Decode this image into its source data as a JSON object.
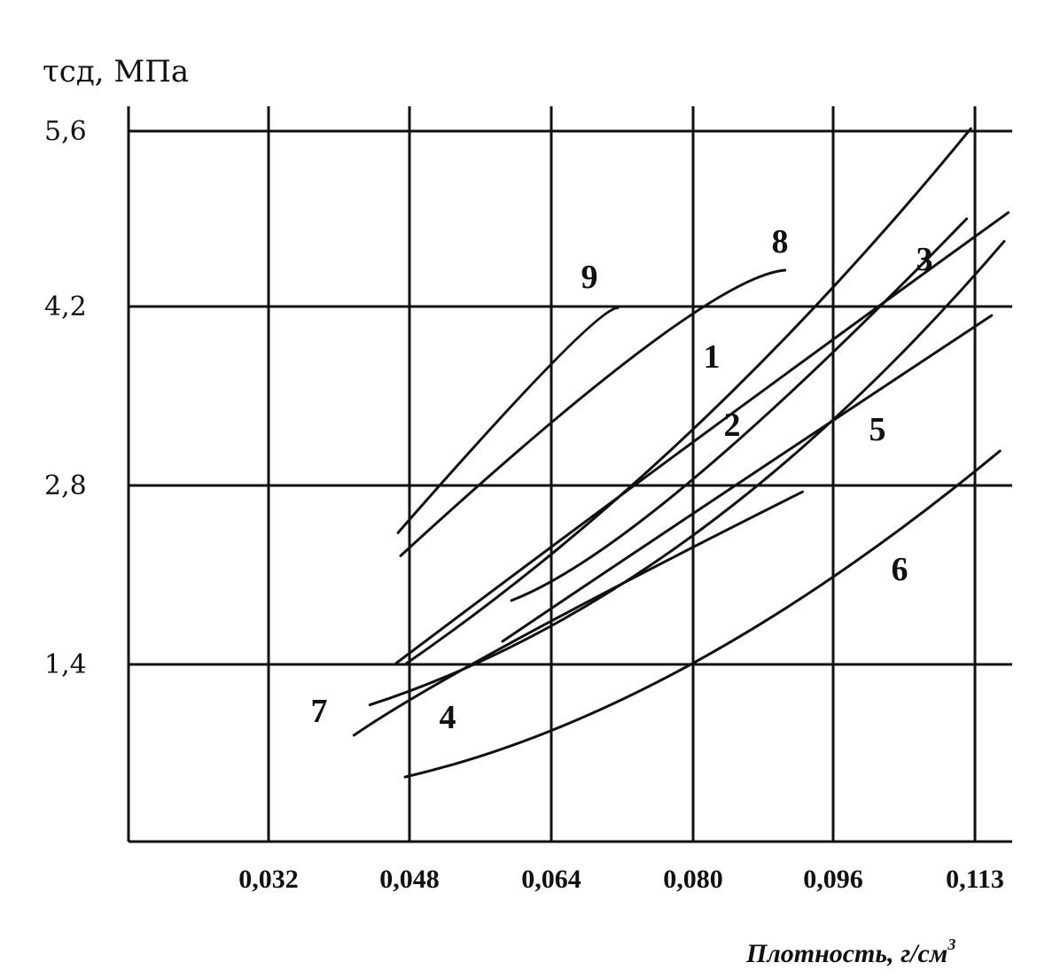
{
  "chart_data": {
    "type": "line",
    "ylabel": "τсд, МПа",
    "xlabel": "Плотность, г/см",
    "xlabel_superscript": "3",
    "x_ticks": [
      "0,032",
      "0,048",
      "0,064",
      "0,080",
      "0,096",
      "0,113"
    ],
    "y_ticks": [
      "1,4",
      "2,8",
      "4,2",
      "5,6"
    ],
    "x_tick_values": [
      0.032,
      0.048,
      0.064,
      0.08,
      0.096,
      0.113
    ],
    "y_tick_values": [
      1.4,
      2.8,
      4.2,
      5.6
    ],
    "xlim": [
      0.016,
      0.116
    ],
    "ylim": [
      0.0,
      5.6
    ],
    "grid": true,
    "series": [
      {
        "name": "1",
        "x": [
          0.0475,
          0.08,
          0.1125
        ],
        "y": [
          1.4,
          3.24,
          5.62
        ]
      },
      {
        "name": "2",
        "x": [
          0.0595,
          0.08,
          0.112
        ],
        "y": [
          1.9,
          2.85,
          4.9
        ]
      },
      {
        "name": "3",
        "x": [
          0.0465,
          0.08,
          0.117
        ],
        "y": [
          1.41,
          3.14,
          4.95
        ]
      },
      {
        "name": "4",
        "x": [
          0.0435,
          0.08,
          0.1165
        ],
        "y": [
          1.08,
          2.41,
          4.72
        ]
      },
      {
        "name": "5",
        "x": [
          0.0585,
          0.08,
          0.115
        ],
        "y": [
          1.58,
          2.58,
          4.13
        ]
      },
      {
        "name": "6",
        "x": [
          0.0475,
          0.08,
          0.116
        ],
        "y": [
          0.51,
          1.41,
          3.07
        ]
      },
      {
        "name": "7",
        "x": [
          0.0417,
          0.06,
          0.0925
        ],
        "y": [
          0.84,
          1.59,
          2.75
        ]
      },
      {
        "name": "8",
        "x": [
          0.047,
          0.075,
          0.0905
        ],
        "y": [
          2.25,
          3.9,
          4.49
        ]
      },
      {
        "name": "9",
        "x": [
          0.0467,
          0.064,
          0.0715
        ],
        "y": [
          2.43,
          3.75,
          4.19
        ]
      }
    ],
    "curve_labels": [
      "1",
      "2",
      "3",
      "4",
      "5",
      "6",
      "7",
      "8",
      "9"
    ]
  }
}
